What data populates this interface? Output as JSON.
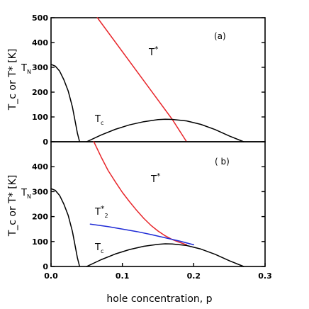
{
  "chart_data": [
    {
      "panel": "a",
      "type": "line",
      "panel_label": "(a)",
      "xlabel": "",
      "ylabel": "T_c or T* [K]",
      "ylim": [
        0,
        500
      ],
      "xlim": [
        0,
        0.3
      ],
      "yticks": [
        0,
        100,
        200,
        300,
        400,
        500
      ],
      "xticks": [],
      "series": [
        {
          "name": "T*",
          "color": "#e8262b",
          "x": [
            0.065,
            0.17,
            0.19
          ],
          "y": [
            500,
            90,
            0
          ]
        },
        {
          "name": "T_N",
          "color": "#000000",
          "x": [
            0.0,
            0.006,
            0.012,
            0.018,
            0.024,
            0.03,
            0.034,
            0.037,
            0.04
          ],
          "y": [
            312,
            305,
            285,
            250,
            205,
            140,
            80,
            35,
            0
          ]
        },
        {
          "name": "T_c",
          "color": "#000000",
          "x": [
            0.05,
            0.07,
            0.09,
            0.11,
            0.13,
            0.15,
            0.16,
            0.17,
            0.19,
            0.21,
            0.23,
            0.25,
            0.27
          ],
          "y": [
            0,
            27,
            50,
            68,
            81,
            89,
            91,
            90,
            84,
            70,
            49,
            23,
            0
          ]
        }
      ],
      "labels": [
        {
          "series": "T*",
          "text": "T",
          "sup": "*"
        },
        {
          "series": "T_N",
          "text": "T",
          "sub": "N"
        },
        {
          "series": "T_c",
          "text": "T",
          "sub": "c"
        }
      ]
    },
    {
      "panel": "b",
      "type": "line",
      "panel_label": "( b)",
      "xlabel": "hole concentration,  p",
      "ylabel": "T_c or T* [K]",
      "ylim": [
        0,
        500
      ],
      "xlim": [
        0,
        0.3
      ],
      "yticks": [
        0,
        100,
        200,
        300,
        400
      ],
      "xticks": [
        0,
        0.1,
        0.2,
        0.3
      ],
      "xtick_labels": [
        "0.0",
        "0.1",
        "0.2",
        "0.3"
      ],
      "series": [
        {
          "name": "T*",
          "color": "#e8262b",
          "x": [
            0.06,
            0.07,
            0.08,
            0.09,
            0.1,
            0.11,
            0.12,
            0.13,
            0.14,
            0.15,
            0.16,
            0.17,
            0.18,
            0.19
          ],
          "y": [
            500,
            440,
            385,
            340,
            297,
            260,
            225,
            193,
            165,
            142,
            123,
            108,
            97,
            87
          ]
        },
        {
          "name": "T*_2",
          "color": "#1f2bd6",
          "x": [
            0.055,
            0.08,
            0.1,
            0.12,
            0.14,
            0.16,
            0.18,
            0.2
          ],
          "y": [
            170,
            160,
            150,
            140,
            128,
            115,
            102,
            87
          ]
        },
        {
          "name": "T_N",
          "color": "#000000",
          "x": [
            0.0,
            0.006,
            0.012,
            0.018,
            0.024,
            0.03,
            0.034,
            0.037,
            0.04
          ],
          "y": [
            312,
            305,
            285,
            250,
            205,
            140,
            80,
            35,
            0
          ]
        },
        {
          "name": "T_c",
          "color": "#000000",
          "x": [
            0.05,
            0.07,
            0.09,
            0.11,
            0.13,
            0.15,
            0.16,
            0.17,
            0.19,
            0.21,
            0.23,
            0.25,
            0.27
          ],
          "y": [
            0,
            27,
            50,
            68,
            81,
            89,
            91,
            90,
            84,
            70,
            49,
            23,
            0
          ]
        }
      ],
      "labels": [
        {
          "series": "T*",
          "text": "T",
          "sup": "*"
        },
        {
          "series": "T*_2",
          "text": "T",
          "sup": "*",
          "sub": "2"
        },
        {
          "series": "T_N",
          "text": "T",
          "sub": "N"
        },
        {
          "series": "T_c",
          "text": "T",
          "sub": "c"
        }
      ]
    }
  ]
}
